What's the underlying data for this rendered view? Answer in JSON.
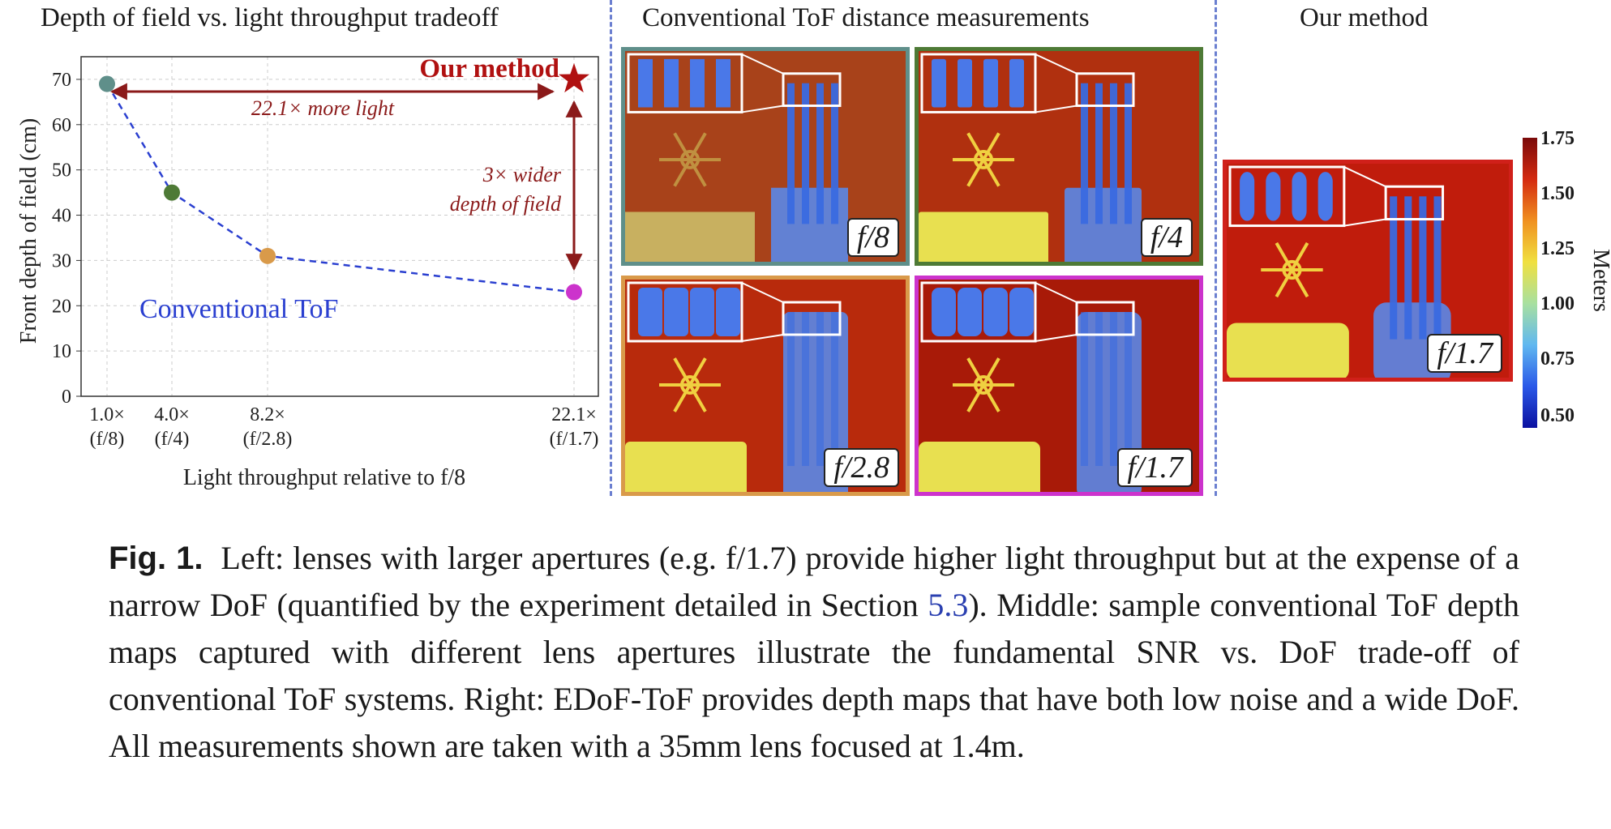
{
  "left_panel": {
    "title": "Depth of field vs. light throughput tradeoff",
    "ylabel": "Front depth of field (cm)",
    "xlabel": "Light throughput relative to f/8",
    "our_method_label": "Our method",
    "conventional_label": "Conventional ToF",
    "more_light_label": "22.1× more light",
    "wider_dof_label_1": "3× wider",
    "wider_dof_label_2": "depth of field"
  },
  "chart_data": {
    "type": "scatter",
    "title": "Depth of field vs. light throughput tradeoff",
    "xlabel": "Light throughput relative to f/8",
    "ylabel": "Front depth of field (cm)",
    "ylim": [
      0,
      75
    ],
    "yticks": [
      0,
      10,
      20,
      30,
      40,
      50,
      60,
      70
    ],
    "grid": true,
    "xtick_labels": [
      {
        "line1": "1.0×",
        "line2": "(f/8)"
      },
      {
        "line1": "4.0×",
        "line2": "(f/4)"
      },
      {
        "line1": "8.2×",
        "line2": "(f/2.8)"
      },
      {
        "line1": "22.1×",
        "line2": "(f/1.7)"
      }
    ],
    "series": [
      {
        "name": "Conventional ToF",
        "x": [
          1.0,
          4.0,
          8.2,
          22.1
        ],
        "y": [
          69,
          45,
          31,
          23
        ],
        "colors": [
          "#5f8f8a",
          "#4e7a36",
          "#d99a4a",
          "#cc33cc"
        ]
      },
      {
        "name": "Our method",
        "x": [
          22.1
        ],
        "y": [
          70
        ],
        "colors": [
          "#b01010"
        ]
      }
    ]
  },
  "middle_panel": {
    "title": "Conventional ToF distance measurements",
    "maps": [
      {
        "aperture": "f/8",
        "border": "#5f8f8a"
      },
      {
        "aperture": "f/4",
        "border": "#4e7a36"
      },
      {
        "aperture": "f/2.8",
        "border": "#d99a4a"
      },
      {
        "aperture": "f/1.7",
        "border": "#cc33cc"
      }
    ]
  },
  "right_panel": {
    "title": "Our method",
    "aperture": "f/1.7",
    "border": "#d0201a",
    "colorbar": {
      "label": "Meters",
      "ticks": [
        "1.75",
        "1.50",
        "1.25",
        "1.00",
        "0.75",
        "0.50"
      ]
    }
  },
  "caption": {
    "fig_label": "Fig. 1.",
    "text_1": "Left: lenses with larger apertures (e.g. f/1.7) provide higher light throughput but at the expense of a narrow DoF (quantified by the experiment detailed in Section ",
    "section_ref": "5.3",
    "text_2": "). Middle: sample conventional ToF depth maps captured with different lens apertures illustrate the fundamental SNR vs. DoF trade-off of conventional ToF systems. Right: EDoF-ToF provides depth maps that have both low noise and a wide DoF. All measurements shown are taken with a 35mm lens focused at 1.4m."
  }
}
